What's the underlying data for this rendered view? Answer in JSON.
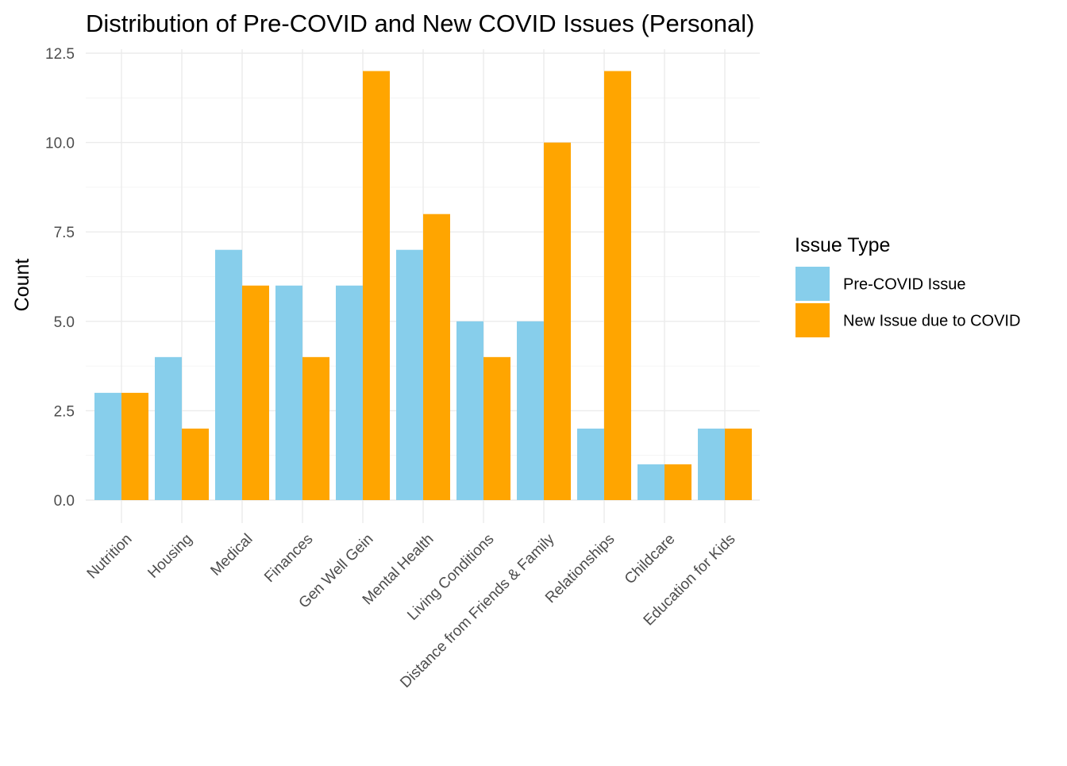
{
  "chart_data": {
    "type": "bar",
    "title": "Distribution of Pre-COVID and New COVID Issues (Personal)",
    "xlabel": "",
    "ylabel": "Count",
    "ylim": [
      0,
      12.5
    ],
    "yticks": [
      "0.0",
      "2.5",
      "5.0",
      "7.5",
      "10.0",
      "12.5"
    ],
    "grid": true,
    "legend": {
      "title": "Issue Type",
      "placement": "right"
    },
    "categories": [
      "Nutrition",
      "Housing",
      "Medical",
      "Finances",
      "Gen Well Gein",
      "Mental Health",
      "Living Conditions",
      "Distance from Friends & Family",
      "Relationships",
      "Childcare",
      "Education for Kids"
    ],
    "series": [
      {
        "name": "Pre-COVID Issue",
        "color": "#87ceeb",
        "values": [
          3,
          4,
          7,
          6,
          6,
          7,
          5,
          5,
          2,
          1,
          2
        ]
      },
      {
        "name": "New Issue due to COVID",
        "color": "#ffa500",
        "values": [
          3,
          2,
          6,
          4,
          12,
          8,
          4,
          10,
          12,
          1,
          2
        ]
      }
    ]
  }
}
